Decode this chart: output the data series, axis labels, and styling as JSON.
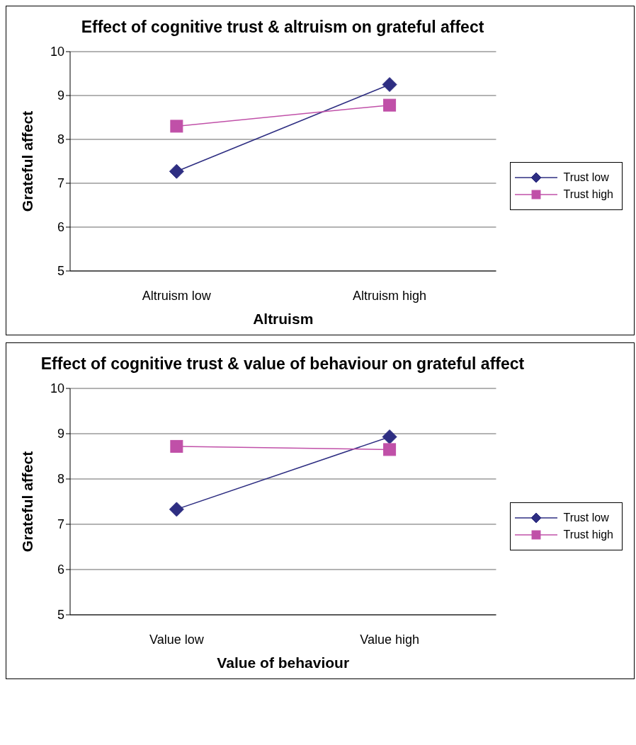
{
  "chart_data": [
    {
      "type": "line",
      "title": "Effect of cognitive trust & altruism on grateful affect",
      "xlabel": "Altruism",
      "ylabel": "Grateful affect",
      "categories": [
        "Altruism low",
        "Altruism high"
      ],
      "series": [
        {
          "name": "Trust low",
          "color": "#2e2e82",
          "values": [
            7.27,
            9.25
          ],
          "marker": "diamond"
        },
        {
          "name": "Trust high",
          "color": "#c050a8",
          "values": [
            8.3,
            8.78
          ],
          "marker": "square"
        }
      ],
      "ylim": [
        5,
        10
      ],
      "yticks": [
        5,
        6,
        7,
        8,
        9,
        10
      ],
      "grid": "y",
      "legend": "right"
    },
    {
      "type": "line",
      "title": "Effect of cognitive trust & value of behaviour on grateful affect",
      "xlabel": "Value of behaviour",
      "ylabel": "Grateful affect",
      "categories": [
        "Value low",
        "Value high"
      ],
      "series": [
        {
          "name": "Trust low",
          "color": "#2e2e82",
          "values": [
            7.33,
            8.93
          ],
          "marker": "diamond"
        },
        {
          "name": "Trust high",
          "color": "#c050a8",
          "values": [
            8.72,
            8.65
          ],
          "marker": "square"
        }
      ],
      "ylim": [
        5,
        10
      ],
      "yticks": [
        5,
        6,
        7,
        8,
        9,
        10
      ],
      "grid": "y",
      "legend": "right"
    }
  ]
}
